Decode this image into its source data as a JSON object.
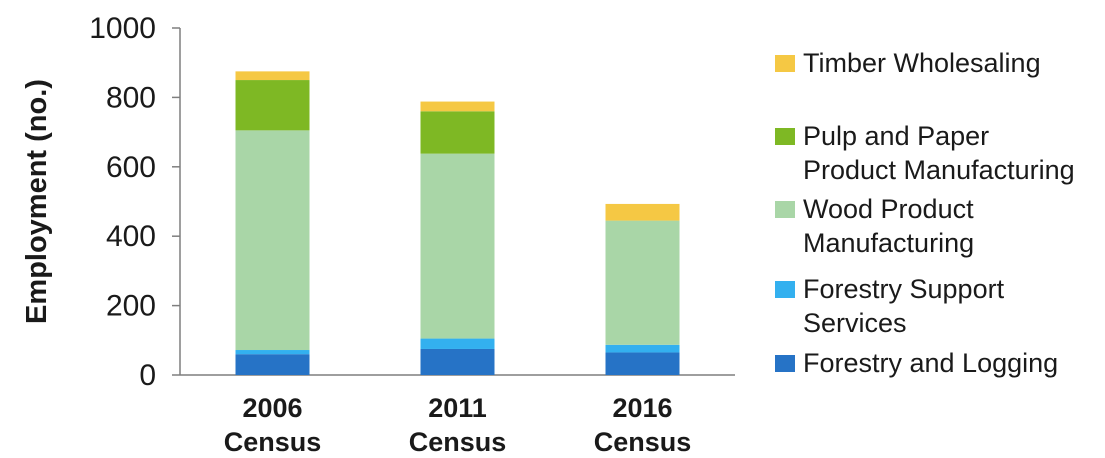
{
  "chart_data": {
    "type": "bar",
    "stacked": true,
    "title": "",
    "xlabel": "",
    "ylabel": "Employment (no.)",
    "ylim": [
      0,
      1000
    ],
    "yticks": [
      0,
      200,
      400,
      600,
      800,
      1000
    ],
    "grid": false,
    "legend_position": "right",
    "categories": [
      [
        "2006",
        "Census"
      ],
      [
        "2011",
        "Census"
      ],
      [
        "2016",
        "Census"
      ]
    ],
    "series": [
      {
        "name": "Forestry and Logging",
        "color": "#2673c6",
        "values": [
          60,
          75,
          65
        ]
      },
      {
        "name": "Forestry Support Services",
        "color": "#33b0ef",
        "values": [
          12,
          30,
          22
        ]
      },
      {
        "name": "Wood Product Manufacturing",
        "color": "#a9d6a7",
        "values": [
          633,
          533,
          358
        ]
      },
      {
        "name": "Pulp and Paper Product Manufacturing",
        "color": "#7eb824",
        "values": [
          145,
          122,
          0
        ]
      },
      {
        "name": "Timber Wholesaling",
        "color": "#f5c844",
        "values": [
          25,
          28,
          48
        ]
      }
    ],
    "legend": [
      {
        "series": 4,
        "lines": [
          "Timber Wholesaling"
        ]
      },
      {
        "series": 3,
        "lines": [
          "Pulp and Paper",
          "Product Manufacturing"
        ]
      },
      {
        "series": 2,
        "lines": [
          "Wood Product",
          "Manufacturing"
        ]
      },
      {
        "series": 1,
        "lines": [
          "Forestry Support",
          "Services"
        ]
      },
      {
        "series": 0,
        "lines": [
          "Forestry and Logging"
        ]
      }
    ]
  }
}
